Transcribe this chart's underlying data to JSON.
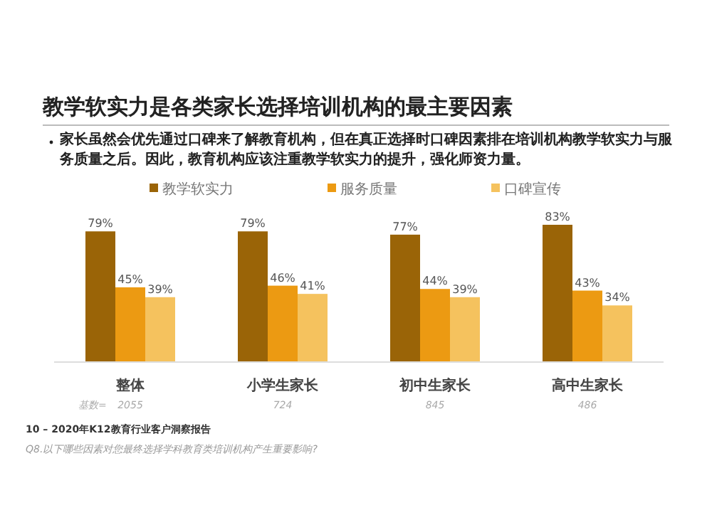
{
  "chart_data": {
    "type": "bar",
    "title": "教学软实力是各类家长选择培训机构的最主要因素",
    "subtitle": "家长虽然会优先通过口碑来了解教育机构，但在真正选择时口碑因素排在培训机构教学软实力与服务质量之后。因此，教育机构应该注重教学软实力的提升，强化师资力量。",
    "categories": [
      "整体",
      "小学生家长",
      "初中生家长",
      "高中生家长"
    ],
    "series": [
      {
        "name": "教学软实力",
        "color": "#9a6407",
        "values": [
          79,
          79,
          77,
          83
        ],
        "value_labels": [
          "79%",
          "79%",
          "77%",
          "83%"
        ]
      },
      {
        "name": "服务质量",
        "color": "#ec9a12",
        "values": [
          45,
          46,
          44,
          43
        ],
        "value_labels": [
          "45%",
          "46%",
          "44%",
          "43%"
        ]
      },
      {
        "name": "口碑宣传",
        "color": "#f5c25e",
        "values": [
          39,
          41,
          39,
          34
        ],
        "value_labels": [
          "39%",
          "41%",
          "39%",
          "34%"
        ]
      }
    ],
    "legend": "top",
    "annotations": [
      "基数=",
      "2055",
      "724",
      "845",
      "486",
      "10 – 2020年K12教育行业客户洞察报告",
      "Q8.以下哪些因素对您最终选择学科教育类培训机构产生重要影响?"
    ]
  }
}
